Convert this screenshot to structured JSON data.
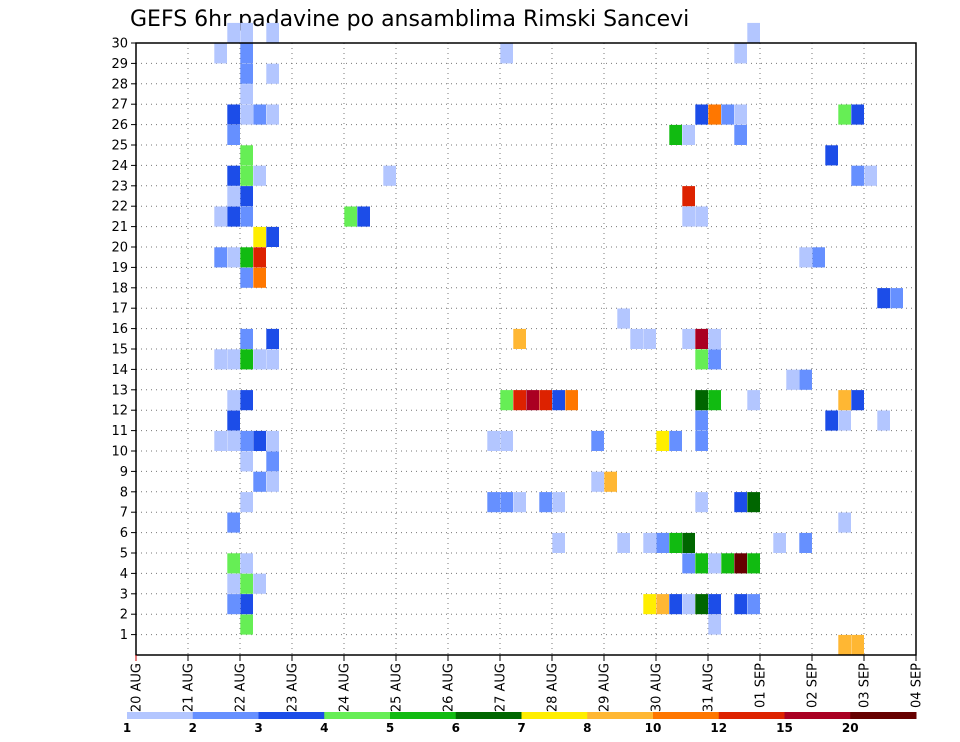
{
  "chart_data": {
    "type": "heatmap",
    "title": "GEFS 6hr padavine po ansamblima Rimski Sancevi",
    "xlabel": "",
    "ylabel": "",
    "x_ticks": [
      "20 AUG",
      "21 AUG",
      "22 AUG",
      "23 AUG",
      "24 AUG",
      "25 AUG",
      "26 AUG",
      "27 AUG",
      "28 AUG",
      "29 AUG",
      "30 AUG",
      "31 AUG",
      "01 SEP",
      "02 SEP",
      "03 SEP",
      "04 SEP"
    ],
    "y_ticks": [
      "1",
      "2",
      "3",
      "4",
      "5",
      "6",
      "7",
      "8",
      "9",
      "10",
      "11",
      "12",
      "13",
      "14",
      "15",
      "16",
      "17",
      "18",
      "19",
      "20",
      "21",
      "22",
      "23",
      "24",
      "25",
      "26",
      "27",
      "28",
      "29",
      "30"
    ],
    "xlim": [
      0,
      60
    ],
    "ylim": [
      0,
      30
    ],
    "x_unit": "6-hour step since 20 AUG 00Z",
    "y_unit": "ensemble member",
    "grid": true,
    "legend_position": "bottom",
    "legend": {
      "colors": [
        "#b3c6ff",
        "#6690ff",
        "#1c4de8",
        "#66ee55",
        "#11bb11",
        "#006600",
        "#ffee00",
        "#ffb733",
        "#ff7700",
        "#dd2200",
        "#aa0022",
        "#660000"
      ],
      "labels": [
        "1",
        "2",
        "3",
        "4",
        "5",
        "6",
        "7",
        "8",
        "10",
        "12",
        "15",
        "20"
      ]
    },
    "cells": [
      {
        "x": 7,
        "y": 30,
        "c": 1
      },
      {
        "x": 8,
        "y": 30,
        "c": 1
      },
      {
        "x": 10,
        "y": 30,
        "c": 1
      },
      {
        "x": 47,
        "y": 30,
        "c": 1
      },
      {
        "x": 6,
        "y": 29,
        "c": 1
      },
      {
        "x": 8,
        "y": 29,
        "c": 2
      },
      {
        "x": 28,
        "y": 29,
        "c": 1
      },
      {
        "x": 46,
        "y": 29,
        "c": 1
      },
      {
        "x": 8,
        "y": 28,
        "c": 2
      },
      {
        "x": 10,
        "y": 28,
        "c": 1
      },
      {
        "x": 8,
        "y": 27,
        "c": 1
      },
      {
        "x": 7,
        "y": 26,
        "c": 3
      },
      {
        "x": 8,
        "y": 26,
        "c": 1
      },
      {
        "x": 9,
        "y": 26,
        "c": 2
      },
      {
        "x": 10,
        "y": 26,
        "c": 1
      },
      {
        "x": 43,
        "y": 26,
        "c": 3
      },
      {
        "x": 44,
        "y": 26,
        "c": 9
      },
      {
        "x": 45,
        "y": 26,
        "c": 2
      },
      {
        "x": 46,
        "y": 26,
        "c": 1
      },
      {
        "x": 54,
        "y": 26,
        "c": 4
      },
      {
        "x": 55,
        "y": 26,
        "c": 3
      },
      {
        "x": 7,
        "y": 25,
        "c": 2
      },
      {
        "x": 41,
        "y": 25,
        "c": 5
      },
      {
        "x": 42,
        "y": 25,
        "c": 1
      },
      {
        "x": 46,
        "y": 25,
        "c": 2
      },
      {
        "x": 8,
        "y": 24,
        "c": 4
      },
      {
        "x": 53,
        "y": 24,
        "c": 3
      },
      {
        "x": 7,
        "y": 23,
        "c": 3
      },
      {
        "x": 8,
        "y": 23,
        "c": 4
      },
      {
        "x": 9,
        "y": 23,
        "c": 1
      },
      {
        "x": 19,
        "y": 23,
        "c": 1
      },
      {
        "x": 55,
        "y": 23,
        "c": 2
      },
      {
        "x": 56,
        "y": 23,
        "c": 1
      },
      {
        "x": 7,
        "y": 22,
        "c": 1
      },
      {
        "x": 8,
        "y": 22,
        "c": 3
      },
      {
        "x": 42,
        "y": 22,
        "c": 10
      },
      {
        "x": 6,
        "y": 21,
        "c": 1
      },
      {
        "x": 7,
        "y": 21,
        "c": 3
      },
      {
        "x": 8,
        "y": 21,
        "c": 2
      },
      {
        "x": 16,
        "y": 21,
        "c": 4
      },
      {
        "x": 17,
        "y": 21,
        "c": 3
      },
      {
        "x": 42,
        "y": 21,
        "c": 1
      },
      {
        "x": 43,
        "y": 21,
        "c": 1
      },
      {
        "x": 10,
        "y": 20,
        "c": 3
      },
      {
        "x": 9,
        "y": 20,
        "c": 7
      },
      {
        "x": 6,
        "y": 19,
        "c": 2
      },
      {
        "x": 7,
        "y": 19,
        "c": 1
      },
      {
        "x": 8,
        "y": 19,
        "c": 5
      },
      {
        "x": 9,
        "y": 19,
        "c": 10
      },
      {
        "x": 51,
        "y": 19,
        "c": 1
      },
      {
        "x": 52,
        "y": 19,
        "c": 2
      },
      {
        "x": 8,
        "y": 18,
        "c": 2
      },
      {
        "x": 9,
        "y": 18,
        "c": 9
      },
      {
        "x": 57,
        "y": 17,
        "c": 3
      },
      {
        "x": 58,
        "y": 17,
        "c": 2
      },
      {
        "x": 37,
        "y": 16,
        "c": 1
      },
      {
        "x": 8,
        "y": 15,
        "c": 2
      },
      {
        "x": 10,
        "y": 15,
        "c": 3
      },
      {
        "x": 29,
        "y": 15,
        "c": 8
      },
      {
        "x": 38,
        "y": 15,
        "c": 1
      },
      {
        "x": 39,
        "y": 15,
        "c": 1
      },
      {
        "x": 42,
        "y": 15,
        "c": 1
      },
      {
        "x": 43,
        "y": 15,
        "c": 11
      },
      {
        "x": 44,
        "y": 15,
        "c": 1
      },
      {
        "x": 6,
        "y": 14,
        "c": 1
      },
      {
        "x": 7,
        "y": 14,
        "c": 1
      },
      {
        "x": 8,
        "y": 14,
        "c": 5
      },
      {
        "x": 9,
        "y": 14,
        "c": 1
      },
      {
        "x": 10,
        "y": 14,
        "c": 1
      },
      {
        "x": 43,
        "y": 14,
        "c": 4
      },
      {
        "x": 44,
        "y": 14,
        "c": 2
      },
      {
        "x": 50,
        "y": 13,
        "c": 1
      },
      {
        "x": 51,
        "y": 13,
        "c": 2
      },
      {
        "x": 7,
        "y": 12,
        "c": 1
      },
      {
        "x": 8,
        "y": 12,
        "c": 3
      },
      {
        "x": 28,
        "y": 12,
        "c": 4
      },
      {
        "x": 29,
        "y": 12,
        "c": 10
      },
      {
        "x": 30,
        "y": 12,
        "c": 11
      },
      {
        "x": 31,
        "y": 12,
        "c": 10
      },
      {
        "x": 32,
        "y": 12,
        "c": 3
      },
      {
        "x": 33,
        "y": 12,
        "c": 9
      },
      {
        "x": 43,
        "y": 12,
        "c": 6
      },
      {
        "x": 44,
        "y": 12,
        "c": 5
      },
      {
        "x": 47,
        "y": 12,
        "c": 1
      },
      {
        "x": 54,
        "y": 12,
        "c": 8
      },
      {
        "x": 55,
        "y": 12,
        "c": 3
      },
      {
        "x": 7,
        "y": 11,
        "c": 3
      },
      {
        "x": 43,
        "y": 11,
        "c": 2
      },
      {
        "x": 53,
        "y": 11,
        "c": 3
      },
      {
        "x": 54,
        "y": 11,
        "c": 1
      },
      {
        "x": 57,
        "y": 11,
        "c": 1
      },
      {
        "x": 6,
        "y": 10,
        "c": 1
      },
      {
        "x": 7,
        "y": 10,
        "c": 1
      },
      {
        "x": 8,
        "y": 10,
        "c": 2
      },
      {
        "x": 9,
        "y": 10,
        "c": 3
      },
      {
        "x": 10,
        "y": 10,
        "c": 1
      },
      {
        "x": 27,
        "y": 10,
        "c": 1
      },
      {
        "x": 28,
        "y": 10,
        "c": 1
      },
      {
        "x": 35,
        "y": 10,
        "c": 2
      },
      {
        "x": 40,
        "y": 10,
        "c": 7
      },
      {
        "x": 41,
        "y": 10,
        "c": 2
      },
      {
        "x": 43,
        "y": 10,
        "c": 2
      },
      {
        "x": 8,
        "y": 9,
        "c": 1
      },
      {
        "x": 10,
        "y": 9,
        "c": 2
      },
      {
        "x": 9,
        "y": 8,
        "c": 2
      },
      {
        "x": 10,
        "y": 8,
        "c": 1
      },
      {
        "x": 35,
        "y": 8,
        "c": 1
      },
      {
        "x": 36,
        "y": 8,
        "c": 8
      },
      {
        "x": 8,
        "y": 7,
        "c": 1
      },
      {
        "x": 27,
        "y": 7,
        "c": 2
      },
      {
        "x": 28,
        "y": 7,
        "c": 2
      },
      {
        "x": 29,
        "y": 7,
        "c": 1
      },
      {
        "x": 31,
        "y": 7,
        "c": 2
      },
      {
        "x": 32,
        "y": 7,
        "c": 1
      },
      {
        "x": 43,
        "y": 7,
        "c": 1
      },
      {
        "x": 46,
        "y": 7,
        "c": 3
      },
      {
        "x": 47,
        "y": 7,
        "c": 6
      },
      {
        "x": 7,
        "y": 6,
        "c": 2
      },
      {
        "x": 54,
        "y": 6,
        "c": 1
      },
      {
        "x": 32,
        "y": 5,
        "c": 1
      },
      {
        "x": 37,
        "y": 5,
        "c": 1
      },
      {
        "x": 39,
        "y": 5,
        "c": 1
      },
      {
        "x": 40,
        "y": 5,
        "c": 2
      },
      {
        "x": 41,
        "y": 5,
        "c": 5
      },
      {
        "x": 42,
        "y": 5,
        "c": 6
      },
      {
        "x": 49,
        "y": 5,
        "c": 1
      },
      {
        "x": 51,
        "y": 5,
        "c": 2
      },
      {
        "x": 7,
        "y": 4,
        "c": 4
      },
      {
        "x": 8,
        "y": 4,
        "c": 1
      },
      {
        "x": 42,
        "y": 4,
        "c": 2
      },
      {
        "x": 43,
        "y": 4,
        "c": 5
      },
      {
        "x": 44,
        "y": 4,
        "c": 1
      },
      {
        "x": 45,
        "y": 4,
        "c": 5
      },
      {
        "x": 46,
        "y": 4,
        "c": 12
      },
      {
        "x": 47,
        "y": 4,
        "c": 5
      },
      {
        "x": 7,
        "y": 3,
        "c": 1
      },
      {
        "x": 8,
        "y": 3,
        "c": 4
      },
      {
        "x": 9,
        "y": 3,
        "c": 1
      },
      {
        "x": 7,
        "y": 2,
        "c": 2
      },
      {
        "x": 8,
        "y": 2,
        "c": 3
      },
      {
        "x": 39,
        "y": 2,
        "c": 7
      },
      {
        "x": 40,
        "y": 2,
        "c": 8
      },
      {
        "x": 41,
        "y": 2,
        "c": 3
      },
      {
        "x": 42,
        "y": 2,
        "c": 1
      },
      {
        "x": 43,
        "y": 2,
        "c": 6
      },
      {
        "x": 44,
        "y": 2,
        "c": 3
      },
      {
        "x": 46,
        "y": 2,
        "c": 3
      },
      {
        "x": 47,
        "y": 2,
        "c": 2
      },
      {
        "x": 8,
        "y": 1,
        "c": 4
      },
      {
        "x": 44,
        "y": 1,
        "c": 1
      },
      {
        "x": 54,
        "y": 0,
        "c": 8
      },
      {
        "x": 55,
        "y": 0,
        "c": 8
      }
    ]
  }
}
